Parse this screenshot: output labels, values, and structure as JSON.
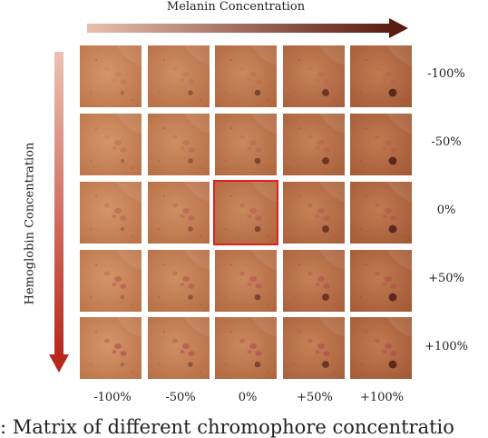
{
  "axes": {
    "top_label": "Melanin Concentration",
    "side_label": "Hemoglobin Concentration"
  },
  "row_labels": [
    "-100%",
    "-50%",
    "0%",
    "+50%",
    "+100%"
  ],
  "col_labels": [
    "-100%",
    "-50%",
    "0%",
    "+50%",
    "+100%"
  ],
  "caption": ": Matrix of different chromophore concentratio",
  "selected_cell": {
    "row": 2,
    "col": 2
  },
  "colors": {
    "arrow_top_start": "#e7c0ad",
    "arrow_top_end": "#5a1b13",
    "arrow_side_start": "#ebc2b3",
    "arrow_side_end": "#b9271c",
    "highlight": "#e0201c",
    "skin_light": "#c98d5f",
    "skin_dark": "#a9663c"
  }
}
